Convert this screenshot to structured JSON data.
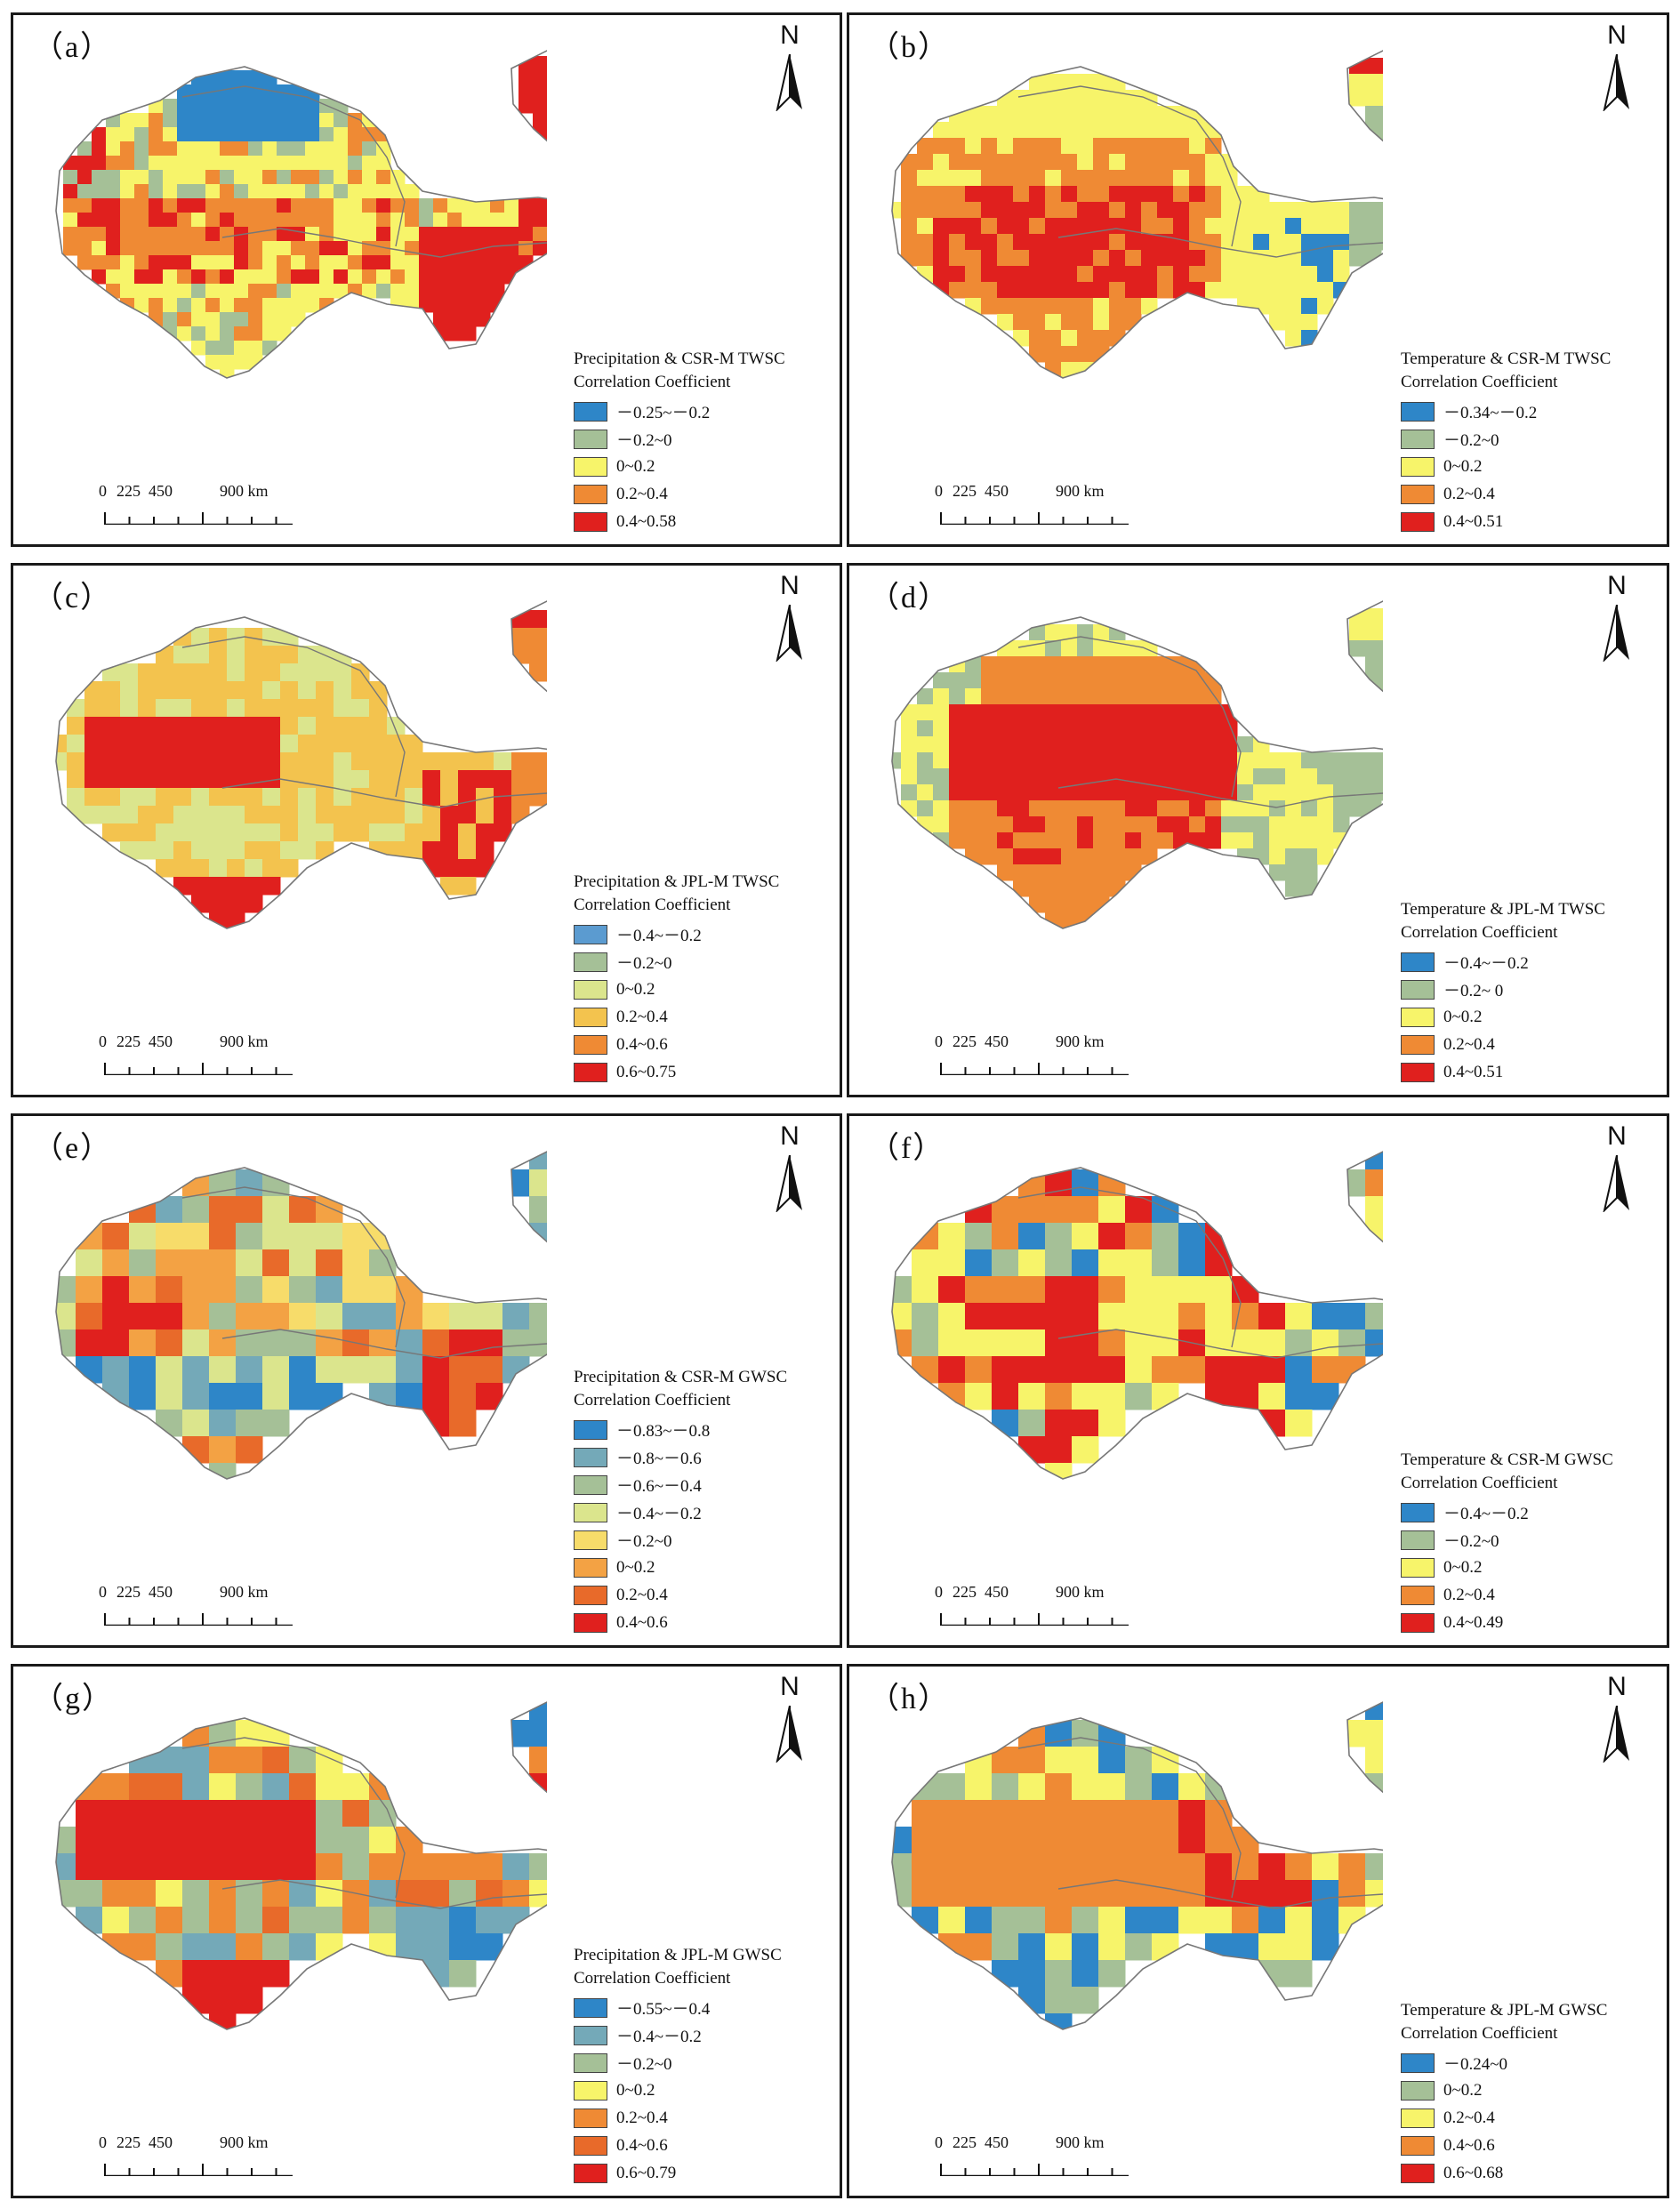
{
  "north_label": "N",
  "scale": {
    "ticks": [
      "0",
      "225",
      "450",
      "900 km"
    ]
  },
  "colors": {
    "blue": "#2e86c8",
    "gray_green": "#a5c097",
    "yellow_green": "#dbe58d",
    "yellow": "#f7f46a",
    "gold": "#f3c34e",
    "orange": "#ef8a34",
    "dark_orange": "#e86a2a",
    "red": "#e0201e",
    "outline": "#777777"
  },
  "panels": [
    {
      "id": "a",
      "label": "（a）",
      "title": "Precipitation & CSR-M TWSC",
      "subtitle": "Correlation Coefficient",
      "legend": [
        {
          "range": "－0.25~－0.2",
          "color": "#2e86c8"
        },
        {
          "range": "－0.2~0",
          "color": "#a5c097"
        },
        {
          "range": "0~0.2",
          "color": "#f7f46a"
        },
        {
          "range": "0.2~0.4",
          "color": "#ef8a34"
        },
        {
          "range": "0.4~0.58",
          "color": "#e0201e"
        }
      ]
    },
    {
      "id": "b",
      "label": "（b）",
      "title": "Temperature & CSR-M TWSC",
      "subtitle": "Correlation Coefficient",
      "legend": [
        {
          "range": "－0.34~－0.2",
          "color": "#2e86c8"
        },
        {
          "range": "－0.2~0",
          "color": "#a5c097"
        },
        {
          "range": "0~0.2",
          "color": "#f7f46a"
        },
        {
          "range": "0.2~0.4",
          "color": "#ef8a34"
        },
        {
          "range": "0.4~0.51",
          "color": "#e0201e"
        }
      ]
    },
    {
      "id": "c",
      "label": "（c）",
      "title": "Precipitation & JPL-M TWSC",
      "subtitle": "Correlation Coefficient",
      "legend": [
        {
          "range": "－0.4~－0.2",
          "color": "#5b9bd0"
        },
        {
          "range": "－0.2~0",
          "color": "#a5c097"
        },
        {
          "range": "0~0.2",
          "color": "#dbe58d"
        },
        {
          "range": "0.2~0.4",
          "color": "#f3c34e"
        },
        {
          "range": "0.4~0.6",
          "color": "#ef8a34"
        },
        {
          "range": "0.6~0.75",
          "color": "#e0201e"
        }
      ]
    },
    {
      "id": "d",
      "label": "（d）",
      "title": "Temperature & JPL-M TWSC",
      "subtitle": "Correlation Coefficient",
      "legend": [
        {
          "range": "－0.4~－0.2",
          "color": "#2e86c8"
        },
        {
          "range": "－0.2~ 0",
          "color": "#a5c097"
        },
        {
          "range": "0~0.2",
          "color": "#f7f46a"
        },
        {
          "range": "0.2~0.4",
          "color": "#ef8a34"
        },
        {
          "range": "0.4~0.51",
          "color": "#e0201e"
        }
      ]
    },
    {
      "id": "e",
      "label": "（e）",
      "title": "Precipitation & CSR-M GWSC",
      "subtitle": "Correlation Coefficient",
      "legend": [
        {
          "range": "－0.83~－0.8",
          "color": "#2e86c8"
        },
        {
          "range": "－0.8~－0.6",
          "color": "#74a9b8"
        },
        {
          "range": "－0.6~－0.4",
          "color": "#a5c097"
        },
        {
          "range": "－0.4~－0.2",
          "color": "#dbe58d"
        },
        {
          "range": "－0.2~0",
          "color": "#f7dc6a"
        },
        {
          "range": "0~0.2",
          "color": "#f3a244"
        },
        {
          "range": "0.2~0.4",
          "color": "#e86a2a"
        },
        {
          "range": "0.4~0.6",
          "color": "#e0201e"
        }
      ]
    },
    {
      "id": "f",
      "label": "（f）",
      "title": "Temperature & CSR-M GWSC",
      "subtitle": "Correlation Coefficient",
      "legend": [
        {
          "range": "－0.4~－0.2",
          "color": "#2e86c8"
        },
        {
          "range": "－0.2~0",
          "color": "#a5c097"
        },
        {
          "range": "0~0.2",
          "color": "#f7f46a"
        },
        {
          "range": "0.2~0.4",
          "color": "#ef8a34"
        },
        {
          "range": "0.4~0.49",
          "color": "#e0201e"
        }
      ]
    },
    {
      "id": "g",
      "label": "（g）",
      "title": "Precipitation & JPL-M GWSC",
      "subtitle": "Correlation Coefficient",
      "legend": [
        {
          "range": "－0.55~－0.4",
          "color": "#2e86c8"
        },
        {
          "range": "－0.4~－0.2",
          "color": "#74a9b8"
        },
        {
          "range": "－0.2~0",
          "color": "#a5c097"
        },
        {
          "range": "0~0.2",
          "color": "#f7f46a"
        },
        {
          "range": "0.2~0.4",
          "color": "#ef8a34"
        },
        {
          "range": "0.4~0.6",
          "color": "#e86a2a"
        },
        {
          "range": "0.6~0.79",
          "color": "#e0201e"
        }
      ]
    },
    {
      "id": "h",
      "label": "（h）",
      "title": "Temperature & JPL-M GWSC",
      "subtitle": "Correlation Coefficient",
      "legend": [
        {
          "range": "－0.24~0",
          "color": "#2e86c8"
        },
        {
          "range": "0~0.2",
          "color": "#a5c097"
        },
        {
          "range": "0.2~0.4",
          "color": "#f7f46a"
        },
        {
          "range": "0.4~0.6",
          "color": "#ef8a34"
        },
        {
          "range": "0.6~0.68",
          "color": "#e0201e"
        }
      ]
    }
  ]
}
